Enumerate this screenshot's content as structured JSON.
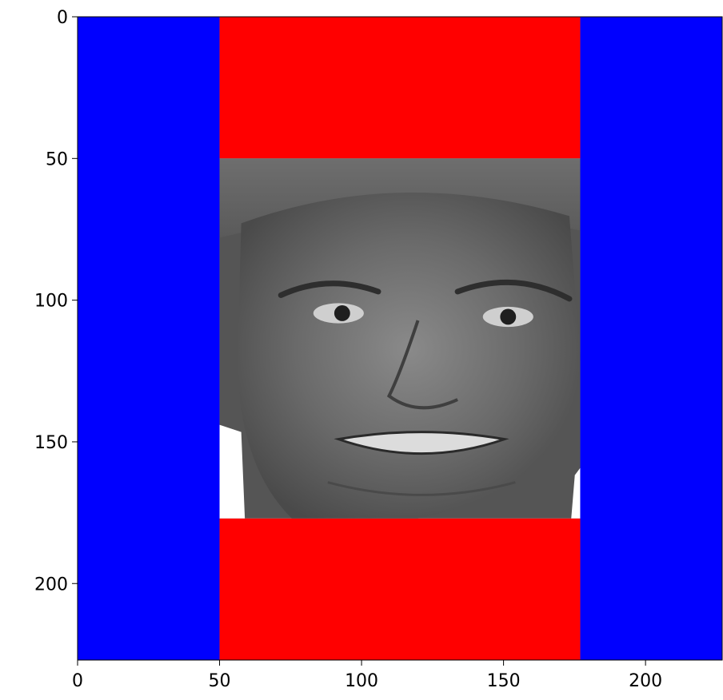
{
  "chart_data": {
    "type": "image",
    "xlim": [
      0,
      227
    ],
    "ylim": [
      227,
      0
    ],
    "x_ticks": [
      0,
      50,
      100,
      150,
      200
    ],
    "y_ticks": [
      0,
      50,
      100,
      150,
      200
    ],
    "x_tick_labels": [
      "0",
      "50",
      "100",
      "150",
      "200"
    ],
    "y_tick_labels": [
      "0",
      "50",
      "100",
      "150",
      "200"
    ],
    "grid": false,
    "regions": [
      {
        "name": "left-padding",
        "color": "#0000ff",
        "x": [
          0,
          50
        ],
        "y": [
          0,
          227
        ]
      },
      {
        "name": "right-padding",
        "color": "#0000ff",
        "x": [
          177,
          227
        ],
        "y": [
          0,
          227
        ]
      },
      {
        "name": "top-padding",
        "color": "#ff0000",
        "x": [
          50,
          177
        ],
        "y": [
          0,
          50
        ]
      },
      {
        "name": "bottom-padding",
        "color": "#ff0000",
        "x": [
          50,
          177
        ],
        "y": [
          177,
          227
        ]
      },
      {
        "name": "face-photo",
        "content": "grayscale face",
        "x": [
          50,
          177
        ],
        "y": [
          50,
          177
        ]
      }
    ]
  },
  "colors": {
    "padding_side": "#0000ff",
    "padding_vertical": "#ff0000",
    "face_tone": "#5a5a5a",
    "axis": "#000000"
  }
}
